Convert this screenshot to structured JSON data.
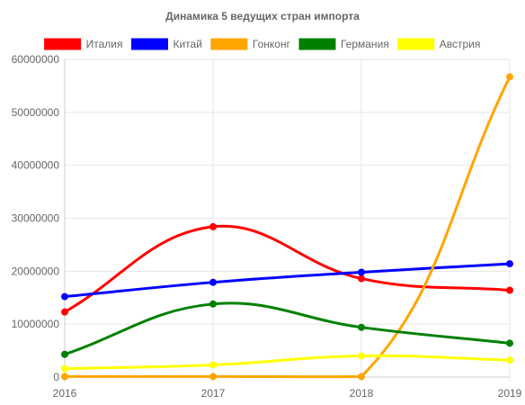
{
  "chart_data": {
    "type": "line",
    "title": "Динамика 5 ведущих стран импорта",
    "categories": [
      "2016",
      "2017",
      "2018",
      "2019"
    ],
    "ylim": [
      0,
      60000000
    ],
    "yticks": [
      "0",
      "10000000",
      "20000000",
      "30000000",
      "40000000",
      "50000000",
      "60000000"
    ],
    "grid": true,
    "legend_position": "top",
    "series": [
      {
        "name": "Италия",
        "color": "#ff0000",
        "values": [
          12300000,
          28400000,
          18600000,
          16400000
        ]
      },
      {
        "name": "Китай",
        "color": "#0000ff",
        "values": [
          15200000,
          17900000,
          19800000,
          21400000
        ]
      },
      {
        "name": "Гонконг",
        "color": "#ffa500",
        "values": [
          100000,
          100000,
          100000,
          56700000
        ]
      },
      {
        "name": "Германия",
        "color": "#008000",
        "values": [
          4300000,
          13800000,
          9400000,
          6400000
        ]
      },
      {
        "name": "Австрия",
        "color": "#ffff00",
        "values": [
          1600000,
          2300000,
          4000000,
          3200000
        ]
      }
    ]
  }
}
